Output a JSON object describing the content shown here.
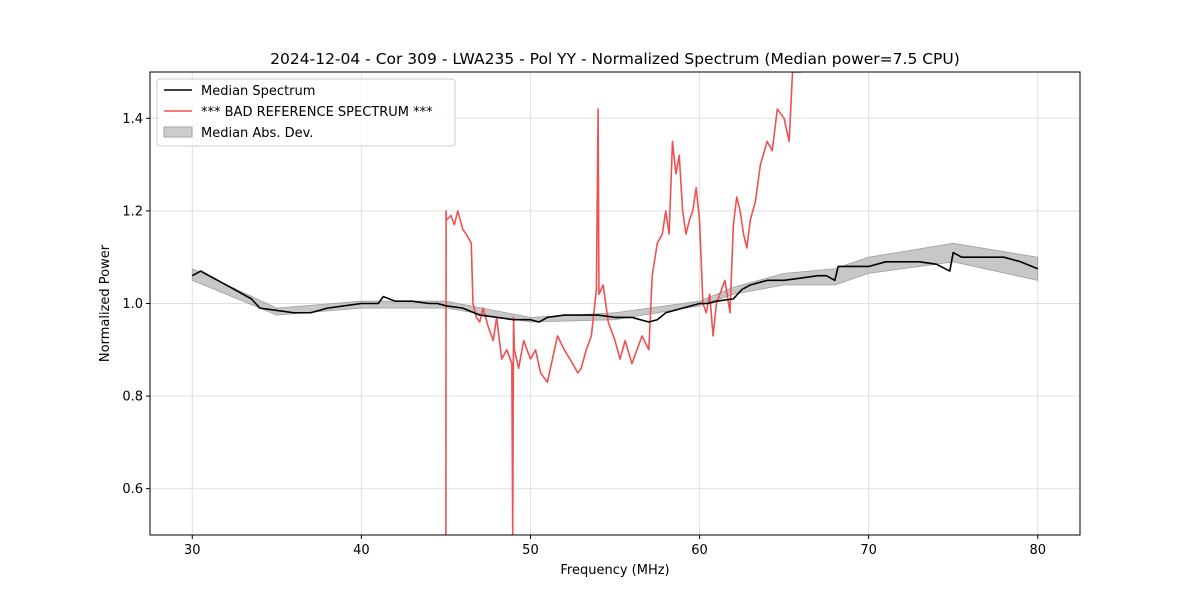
{
  "chart_data": {
    "type": "line",
    "title": "2024-12-04 - Cor 309 - LWA235 - Pol YY - Normalized Spectrum (Median power=7.5 CPU)",
    "xlabel": "Frequency (MHz)",
    "ylabel": "Normalized Power",
    "xlim": [
      27.5,
      82.5
    ],
    "ylim": [
      0.5,
      1.5
    ],
    "xticks": [
      30,
      40,
      50,
      60,
      70,
      80
    ],
    "xtick_labels": [
      "30",
      "40",
      "50",
      "60",
      "70",
      "80"
    ],
    "yticks": [
      0.6,
      0.8,
      1.0,
      1.2,
      1.4
    ],
    "ytick_labels": [
      "0.6",
      "0.8",
      "1.0",
      "1.2",
      "1.4"
    ],
    "grid": true,
    "legend_position": "top-left",
    "colors": {
      "median": "#000000",
      "bad": "#f05050",
      "mad": "#a0a0a0"
    },
    "series": [
      {
        "name": "Median Spectrum",
        "style": "line",
        "x": [
          30,
          30.5,
          31,
          31.5,
          32,
          32.5,
          33,
          33.5,
          34,
          35,
          36,
          37,
          38,
          39,
          40,
          41,
          41.3,
          42,
          43,
          44,
          44.5,
          45,
          46,
          47,
          48,
          49,
          50,
          50.5,
          51,
          52,
          53,
          54,
          55,
          56,
          57,
          57.5,
          58,
          59,
          60,
          60.5,
          61,
          62,
          62.5,
          63,
          64,
          65,
          66,
          67,
          67.5,
          68,
          68.2,
          69,
          70,
          71,
          72,
          73,
          74,
          74.8,
          75,
          75.5,
          76,
          77,
          78,
          79,
          80
        ],
        "values": [
          1.06,
          1.07,
          1.06,
          1.05,
          1.04,
          1.03,
          1.02,
          1.01,
          0.99,
          0.985,
          0.98,
          0.98,
          0.99,
          0.995,
          1.0,
          1.0,
          1.015,
          1.005,
          1.005,
          1.0,
          1.0,
          0.995,
          0.99,
          0.975,
          0.97,
          0.965,
          0.965,
          0.96,
          0.97,
          0.975,
          0.975,
          0.975,
          0.97,
          0.97,
          0.96,
          0.965,
          0.98,
          0.99,
          1.0,
          1.0,
          1.005,
          1.01,
          1.03,
          1.04,
          1.05,
          1.05,
          1.055,
          1.06,
          1.06,
          1.05,
          1.08,
          1.08,
          1.08,
          1.09,
          1.09,
          1.09,
          1.085,
          1.07,
          1.11,
          1.1,
          1.1,
          1.1,
          1.1,
          1.09,
          1.075
        ]
      },
      {
        "name": "*** BAD REFERENCE SPECTRUM ***",
        "style": "line",
        "x": [
          45,
          45.01,
          45.02,
          45.3,
          45.5,
          45.7,
          46,
          46.2,
          46.5,
          46.6,
          46.8,
          47,
          47.2,
          47.5,
          47.8,
          48,
          48.3,
          48.6,
          48.9,
          48.95,
          49.0,
          49.05,
          49.3,
          49.6,
          50,
          50.3,
          50.6,
          51,
          51.3,
          51.6,
          52,
          52.5,
          52.8,
          53,
          53.3,
          53.6,
          53.9,
          54.0,
          54.05,
          54.3,
          54.6,
          55,
          55.3,
          55.6,
          56,
          56.3,
          56.6,
          57,
          57.2,
          57.5,
          57.8,
          58,
          58.2,
          58.4,
          58.6,
          58.8,
          59,
          59.2,
          59.4,
          59.6,
          59.8,
          60,
          60.2,
          60.4,
          60.6,
          60.8,
          61,
          61.2,
          61.5,
          61.8,
          62,
          62.2,
          62.4,
          62.6,
          62.8,
          63,
          63.3,
          63.6,
          64,
          64.3,
          64.6,
          65,
          65.3,
          65.5,
          65.7,
          66.0
        ],
        "values": [
          0.5,
          1.2,
          1.18,
          1.19,
          1.17,
          1.2,
          1.16,
          1.15,
          1.13,
          1.0,
          0.97,
          0.96,
          0.99,
          0.95,
          0.92,
          0.97,
          0.88,
          0.9,
          0.87,
          0.5,
          0.97,
          0.9,
          0.86,
          0.92,
          0.88,
          0.9,
          0.85,
          0.83,
          0.88,
          0.93,
          0.9,
          0.87,
          0.85,
          0.86,
          0.9,
          0.93,
          1.03,
          1.42,
          1.02,
          1.04,
          0.96,
          0.92,
          0.88,
          0.92,
          0.87,
          0.9,
          0.93,
          0.9,
          1.06,
          1.13,
          1.15,
          1.2,
          1.15,
          1.35,
          1.28,
          1.32,
          1.2,
          1.15,
          1.18,
          1.2,
          1.25,
          1.18,
          1.0,
          0.98,
          1.02,
          0.93,
          1.0,
          1.02,
          1.05,
          0.98,
          1.17,
          1.23,
          1.2,
          1.15,
          1.12,
          1.18,
          1.22,
          1.3,
          1.35,
          1.33,
          1.42,
          1.4,
          1.35,
          1.5,
          1.5,
          1.5
        ]
      },
      {
        "name": "Median Abs. Dev.",
        "style": "band",
        "x": [
          30,
          35,
          40,
          45,
          50,
          55,
          60,
          62,
          65,
          68,
          70,
          75,
          80
        ],
        "lower": [
          1.05,
          0.975,
          0.99,
          0.99,
          0.96,
          0.965,
          0.995,
          1.02,
          1.04,
          1.04,
          1.065,
          1.09,
          1.05
        ],
        "upper": [
          1.075,
          0.99,
          1.005,
          1.005,
          0.97,
          0.98,
          1.005,
          1.035,
          1.065,
          1.075,
          1.1,
          1.13,
          1.1
        ]
      }
    ]
  }
}
